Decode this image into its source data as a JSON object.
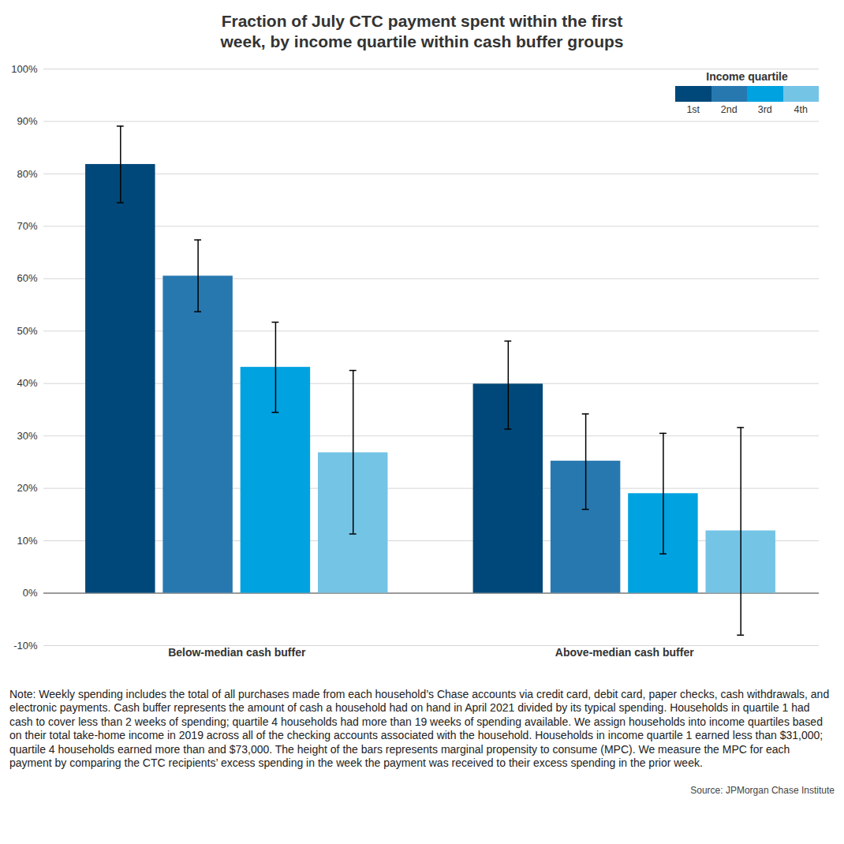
{
  "chart_data": {
    "type": "bar",
    "title": "Fraction of July CTC payment spent within the first week, by income quartile within cash buffer groups",
    "categories": [
      "Below-median cash buffer",
      "Above-median cash buffer"
    ],
    "legend_title": "Income quartile",
    "series": [
      {
        "name": "1st",
        "color": "#004879",
        "values": [
          81.8,
          39.9
        ],
        "error_lower": [
          74.5,
          31.3
        ],
        "error_upper": [
          89.1,
          48.1
        ]
      },
      {
        "name": "2nd",
        "color": "#2878b0",
        "values": [
          60.5,
          25.2
        ],
        "error_lower": [
          53.7,
          16.0
        ],
        "error_upper": [
          67.4,
          34.2
        ]
      },
      {
        "name": "3rd",
        "color": "#00a2df",
        "values": [
          43.1,
          19.0
        ],
        "error_lower": [
          34.5,
          7.5
        ],
        "error_upper": [
          51.7,
          30.5
        ]
      },
      {
        "name": "4th",
        "color": "#74c4e6",
        "values": [
          26.8,
          11.9
        ],
        "error_lower": [
          11.3,
          -8.0
        ],
        "error_upper": [
          42.5,
          31.6
        ]
      }
    ],
    "ylim": [
      -10,
      100
    ],
    "yticks": [
      {
        "value": -10,
        "label": "-10%"
      },
      {
        "value": 0,
        "label": "0%"
      },
      {
        "value": 10,
        "label": "10%"
      },
      {
        "value": 20,
        "label": "20%"
      },
      {
        "value": 30,
        "label": "30%"
      },
      {
        "value": 40,
        "label": "40%"
      },
      {
        "value": 50,
        "label": "50%"
      },
      {
        "value": 60,
        "label": "60%"
      },
      {
        "value": 70,
        "label": "70%"
      },
      {
        "value": 80,
        "label": "80%"
      },
      {
        "value": 90,
        "label": "90%"
      },
      {
        "value": 100,
        "label": "100%"
      }
    ],
    "grid": true,
    "legend": "top-right",
    "note": "Note: Weekly spending includes the total of all purchases made from each household’s Chase accounts via credit card, debit card, paper checks, cash withdrawals, and electronic payments. Cash buffer represents the amount of cash a household had on hand in April 2021 divided by its typical spending. Households in quartile 1 had cash to cover less than 2 weeks of spending; quartile 4 households had more than 19 weeks of spending available. We assign households into income quartiles based on their total take-home income in 2019 across all of the checking accounts associated with the household. Households in income quartile 1 earned less than $31,000; quartile 4 households earned more than and $73,000. The height of the bars represents marginal propensity to consume (MPC). We measure the MPC for each payment by comparing the CTC recipients’ excess spending in the week the payment was received to their excess spending in the prior week.",
    "source": "Source: JPMorgan Chase Institute"
  }
}
